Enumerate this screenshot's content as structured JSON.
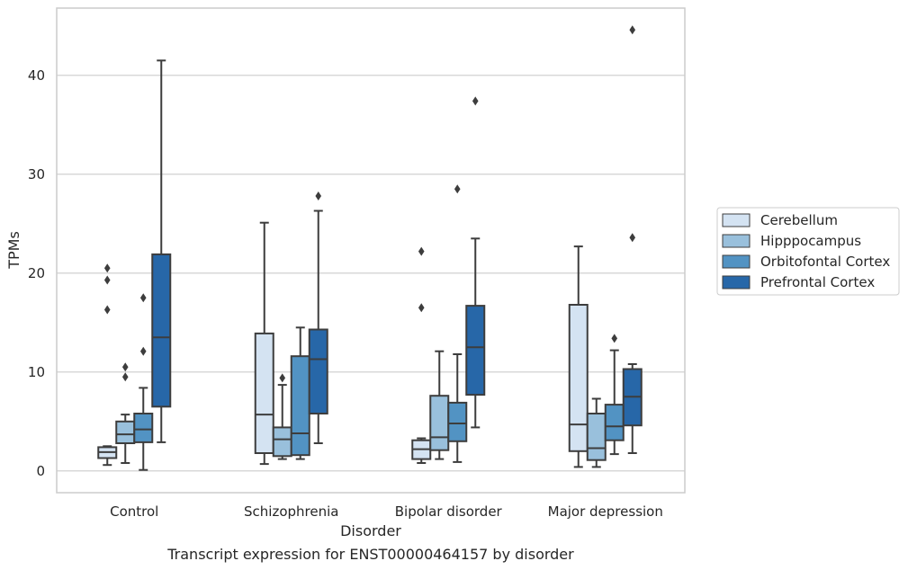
{
  "caption": "Transcript expression for ENST00000464157 by disorder",
  "chart_data": {
    "type": "box",
    "xlabel": "Disorder",
    "ylabel": "TPMs",
    "ylim": [
      -2.2,
      46.8
    ],
    "yticks": [
      0,
      10,
      20,
      30,
      40
    ],
    "grid": "horizontal",
    "legend_position": "right",
    "categories": [
      "Control",
      "Schizophrenia",
      "Bipolar disorder",
      "Major depression"
    ],
    "series": [
      {
        "name": "Cerebellum",
        "color": "#d4e3f2",
        "boxes": [
          {
            "whisker_low": 0.6,
            "q1": 1.3,
            "median": 1.9,
            "q3": 2.4,
            "whisker_high": 2.5,
            "outliers": [
              16.3,
              19.3,
              20.5
            ]
          },
          {
            "whisker_low": 0.7,
            "q1": 1.8,
            "median": 5.7,
            "q3": 13.9,
            "whisker_high": 25.1,
            "outliers": []
          },
          {
            "whisker_low": 0.8,
            "q1": 1.2,
            "median": 2.2,
            "q3": 3.1,
            "whisker_high": 3.3,
            "outliers": [
              16.5,
              22.2
            ]
          },
          {
            "whisker_low": 0.4,
            "q1": 2.0,
            "median": 4.7,
            "q3": 16.8,
            "whisker_high": 22.7,
            "outliers": []
          }
        ]
      },
      {
        "name": "Hipppocampus",
        "color": "#99c0dc",
        "boxes": [
          {
            "whisker_low": 0.8,
            "q1": 2.8,
            "median": 3.7,
            "q3": 5.0,
            "whisker_high": 5.7,
            "outliers": [
              9.5,
              10.5
            ]
          },
          {
            "whisker_low": 1.2,
            "q1": 1.5,
            "median": 3.2,
            "q3": 4.4,
            "whisker_high": 8.7,
            "outliers": [
              9.4
            ]
          },
          {
            "whisker_low": 1.2,
            "q1": 2.1,
            "median": 3.4,
            "q3": 7.6,
            "whisker_high": 12.1,
            "outliers": []
          },
          {
            "whisker_low": 0.4,
            "q1": 1.1,
            "median": 2.3,
            "q3": 5.8,
            "whisker_high": 7.3,
            "outliers": []
          }
        ]
      },
      {
        "name": "Orbitofontal Cortex",
        "color": "#5293c3",
        "boxes": [
          {
            "whisker_low": 0.1,
            "q1": 2.9,
            "median": 4.2,
            "q3": 5.8,
            "whisker_high": 8.4,
            "outliers": [
              12.1,
              17.5
            ]
          },
          {
            "whisker_low": 1.2,
            "q1": 1.6,
            "median": 3.8,
            "q3": 11.6,
            "whisker_high": 14.5,
            "outliers": []
          },
          {
            "whisker_low": 0.9,
            "q1": 3.0,
            "median": 4.8,
            "q3": 6.9,
            "whisker_high": 11.8,
            "outliers": [
              28.5
            ]
          },
          {
            "whisker_low": 1.7,
            "q1": 3.1,
            "median": 4.5,
            "q3": 6.7,
            "whisker_high": 12.2,
            "outliers": [
              13.4
            ]
          }
        ]
      },
      {
        "name": "Prefrontal Cortex",
        "color": "#2767a8",
        "boxes": [
          {
            "whisker_low": 2.9,
            "q1": 6.5,
            "median": 13.5,
            "q3": 21.9,
            "whisker_high": 41.5,
            "outliers": []
          },
          {
            "whisker_low": 2.8,
            "q1": 5.8,
            "median": 11.3,
            "q3": 14.3,
            "whisker_high": 26.3,
            "outliers": [
              27.8
            ]
          },
          {
            "whisker_low": 4.4,
            "q1": 7.7,
            "median": 12.5,
            "q3": 16.7,
            "whisker_high": 23.5,
            "outliers": [
              37.4
            ]
          },
          {
            "whisker_low": 1.8,
            "q1": 4.6,
            "median": 7.5,
            "q3": 10.3,
            "whisker_high": 10.8,
            "outliers": [
              23.6,
              44.6
            ]
          }
        ]
      }
    ]
  }
}
